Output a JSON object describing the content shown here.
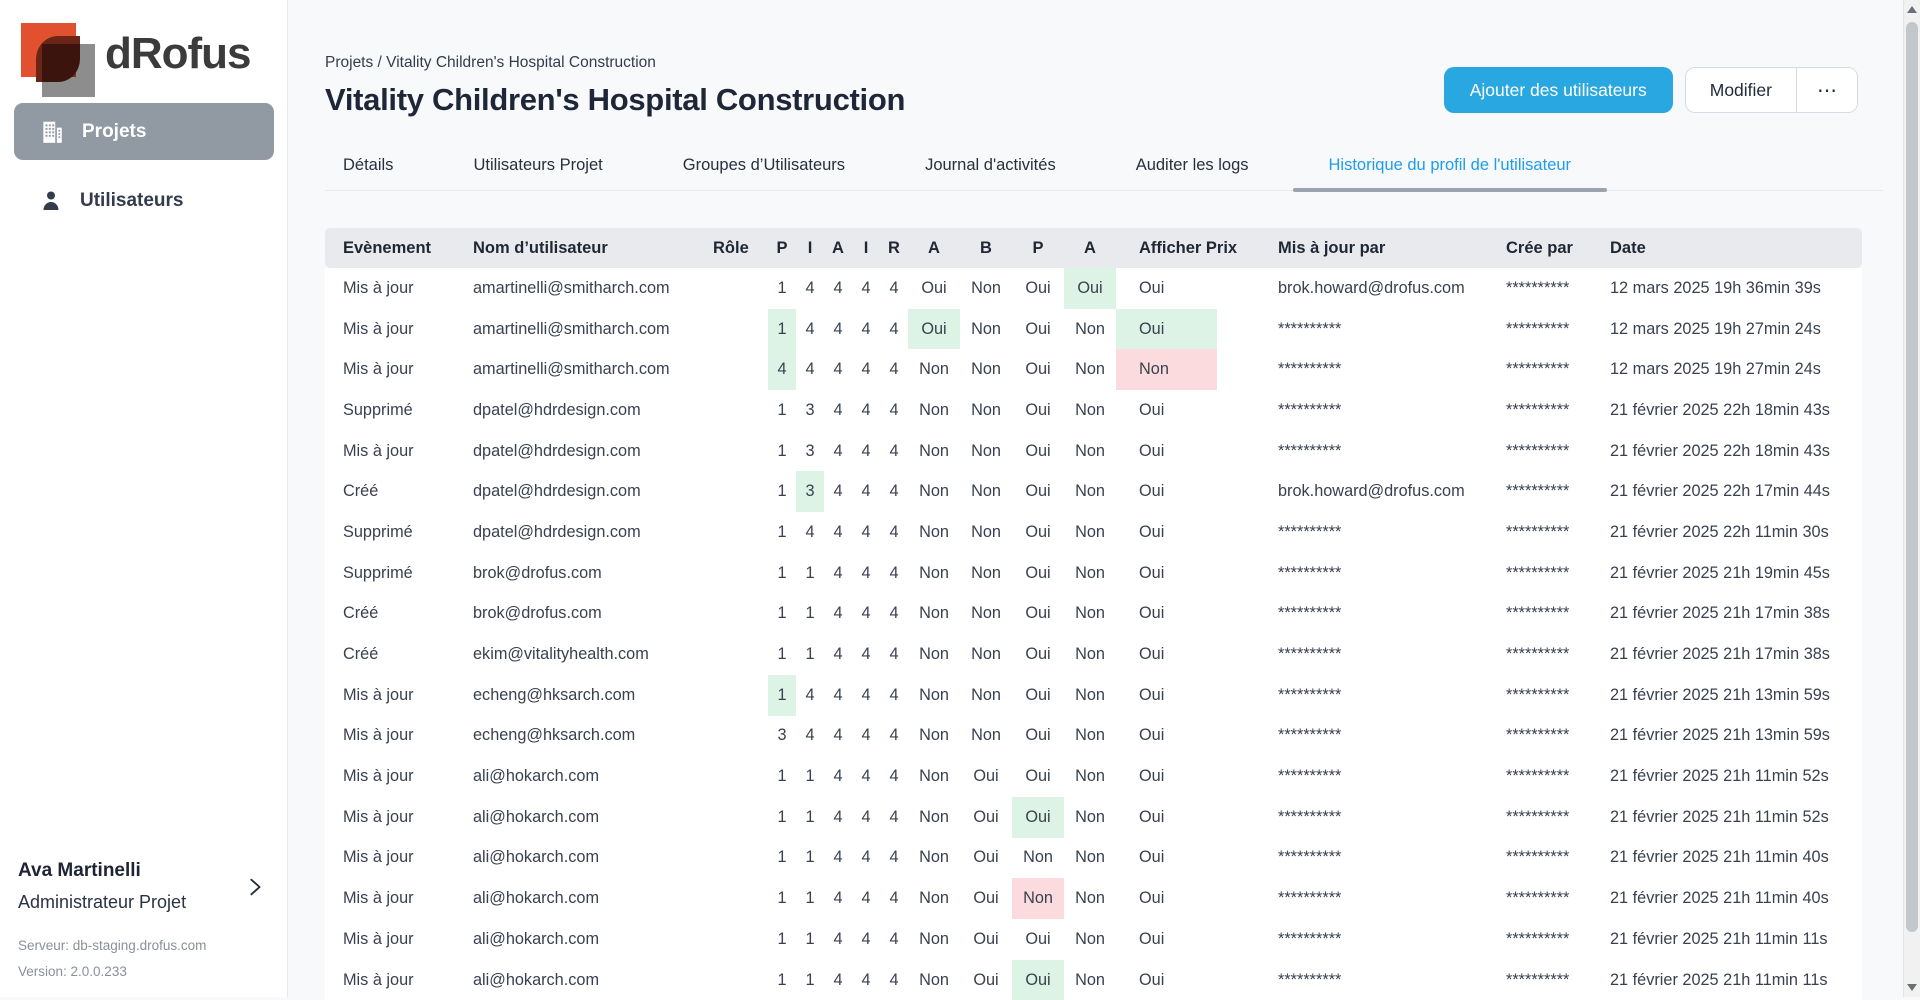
{
  "brand": "dRofus",
  "sidebar": {
    "items": [
      {
        "name": "sidebar-item-projets",
        "icon": "building-icon",
        "label": "Projets",
        "active": true
      },
      {
        "name": "sidebar-item-utilisateurs",
        "icon": "user-icon",
        "label": "Utilisateurs",
        "active": false
      }
    ],
    "user": {
      "name": "Ava Martinelli",
      "role": "Administrateur Projet"
    },
    "server": "Serveur: db-staging.drofus.com",
    "version": "Version: 2.0.0.233"
  },
  "header": {
    "breadcrumb": "Projets / Vitality Children's Hospital Construction",
    "title": "Vitality Children's Hospital Construction",
    "add_users_label": "Ajouter des utilisateurs",
    "modify_label": "Modifier",
    "more_label": "⋯"
  },
  "tabs": [
    {
      "name": "tab-details",
      "label": "Détails",
      "active": false
    },
    {
      "name": "tab-utilisateurs-projet",
      "label": "Utilisateurs Projet",
      "active": false
    },
    {
      "name": "tab-groupes-utilisateurs",
      "label": "Groupes d’Utilisateurs",
      "active": false
    },
    {
      "name": "tab-journal-activites",
      "label": "Journal d'activités",
      "active": false
    },
    {
      "name": "tab-auditer-les-logs",
      "label": "Auditer les logs",
      "active": false
    },
    {
      "name": "tab-historique-profil-utilisateur",
      "label": "Historique du profil de l'utilisateur",
      "active": true
    }
  ],
  "table": {
    "columns": [
      "Evènement",
      "Nom d’utilisateur",
      "Rôle",
      "P",
      "I",
      "A",
      "I",
      "R",
      "A",
      "B",
      "P",
      "A",
      "Afficher Prix",
      "Mis à jour par",
      "Crée par",
      "Date"
    ],
    "rows": [
      {
        "cells": [
          "Mis à jour",
          "amartinelli@smitharch.com",
          "",
          "1",
          "4",
          "4",
          "4",
          "4",
          "Oui",
          "Non",
          "Oui",
          "Oui",
          "Oui",
          "brok.howard@drofus.com",
          "**********",
          "12 mars 2025 19h 36min 39s"
        ],
        "hl": {
          "11": "green"
        }
      },
      {
        "cells": [
          "Mis à jour",
          "amartinelli@smitharch.com",
          "",
          "1",
          "4",
          "4",
          "4",
          "4",
          "Oui",
          "Non",
          "Oui",
          "Non",
          "Oui",
          "**********",
          "**********",
          "12 mars 2025 19h 27min 24s"
        ],
        "hl": {
          "3": "green",
          "8": "green",
          "12": "green"
        }
      },
      {
        "cells": [
          "Mis à jour",
          "amartinelli@smitharch.com",
          "",
          "4",
          "4",
          "4",
          "4",
          "4",
          "Non",
          "Non",
          "Oui",
          "Non",
          "Non",
          "**********",
          "**********",
          "12 mars 2025 19h 27min 24s"
        ],
        "hl": {
          "3": "green",
          "12": "red"
        }
      },
      {
        "cells": [
          "Supprimé",
          "dpatel@hdrdesign.com",
          "",
          "1",
          "3",
          "4",
          "4",
          "4",
          "Non",
          "Non",
          "Oui",
          "Non",
          "Oui",
          "**********",
          "**********",
          "21 février 2025 22h 18min 43s"
        ],
        "hl": {}
      },
      {
        "cells": [
          "Mis à jour",
          "dpatel@hdrdesign.com",
          "",
          "1",
          "3",
          "4",
          "4",
          "4",
          "Non",
          "Non",
          "Oui",
          "Non",
          "Oui",
          "**********",
          "**********",
          "21 février 2025 22h 18min 43s"
        ],
        "hl": {}
      },
      {
        "cells": [
          "Créé",
          "dpatel@hdrdesign.com",
          "",
          "1",
          "3",
          "4",
          "4",
          "4",
          "Non",
          "Non",
          "Oui",
          "Non",
          "Oui",
          "brok.howard@drofus.com",
          "**********",
          "21 février 2025 22h 17min 44s"
        ],
        "hl": {
          "4": "green"
        }
      },
      {
        "cells": [
          "Supprimé",
          "dpatel@hdrdesign.com",
          "",
          "1",
          "4",
          "4",
          "4",
          "4",
          "Non",
          "Non",
          "Oui",
          "Non",
          "Oui",
          "**********",
          "**********",
          "21 février 2025 22h 11min 30s"
        ],
        "hl": {}
      },
      {
        "cells": [
          "Supprimé",
          "brok@drofus.com",
          "",
          "1",
          "1",
          "4",
          "4",
          "4",
          "Non",
          "Non",
          "Oui",
          "Non",
          "Oui",
          "**********",
          "**********",
          "21 février 2025 21h 19min 45s"
        ],
        "hl": {}
      },
      {
        "cells": [
          "Créé",
          "brok@drofus.com",
          "",
          "1",
          "1",
          "4",
          "4",
          "4",
          "Non",
          "Non",
          "Oui",
          "Non",
          "Oui",
          "**********",
          "**********",
          "21 février 2025 21h 17min 38s"
        ],
        "hl": {}
      },
      {
        "cells": [
          "Créé",
          "ekim@vitalityhealth.com",
          "",
          "1",
          "1",
          "4",
          "4",
          "4",
          "Non",
          "Non",
          "Oui",
          "Non",
          "Oui",
          "**********",
          "**********",
          "21 février 2025 21h 17min 38s"
        ],
        "hl": {}
      },
      {
        "cells": [
          "Mis à jour",
          "echeng@hksarch.com",
          "",
          "1",
          "4",
          "4",
          "4",
          "4",
          "Non",
          "Non",
          "Oui",
          "Non",
          "Oui",
          "**********",
          "**********",
          "21 février 2025 21h 13min 59s"
        ],
        "hl": {
          "3": "green"
        }
      },
      {
        "cells": [
          "Mis à jour",
          "echeng@hksarch.com",
          "",
          "3",
          "4",
          "4",
          "4",
          "4",
          "Non",
          "Non",
          "Oui",
          "Non",
          "Oui",
          "**********",
          "**********",
          "21 février 2025 21h 13min 59s"
        ],
        "hl": {}
      },
      {
        "cells": [
          "Mis à jour",
          "ali@hokarch.com",
          "",
          "1",
          "1",
          "4",
          "4",
          "4",
          "Non",
          "Oui",
          "Oui",
          "Non",
          "Oui",
          "**********",
          "**********",
          "21 février 2025 21h 11min 52s"
        ],
        "hl": {}
      },
      {
        "cells": [
          "Mis à jour",
          "ali@hokarch.com",
          "",
          "1",
          "1",
          "4",
          "4",
          "4",
          "Non",
          "Oui",
          "Oui",
          "Non",
          "Oui",
          "**********",
          "**********",
          "21 février 2025 21h 11min 52s"
        ],
        "hl": {
          "10": "green"
        }
      },
      {
        "cells": [
          "Mis à jour",
          "ali@hokarch.com",
          "",
          "1",
          "1",
          "4",
          "4",
          "4",
          "Non",
          "Oui",
          "Non",
          "Non",
          "Oui",
          "**********",
          "**********",
          "21 février 2025 21h 11min 40s"
        ],
        "hl": {}
      },
      {
        "cells": [
          "Mis à jour",
          "ali@hokarch.com",
          "",
          "1",
          "1",
          "4",
          "4",
          "4",
          "Non",
          "Oui",
          "Non",
          "Non",
          "Oui",
          "**********",
          "**********",
          "21 février 2025 21h 11min 40s"
        ],
        "hl": {
          "10": "red"
        }
      },
      {
        "cells": [
          "Mis à jour",
          "ali@hokarch.com",
          "",
          "1",
          "1",
          "4",
          "4",
          "4",
          "Non",
          "Oui",
          "Oui",
          "Non",
          "Oui",
          "**********",
          "**********",
          "21 février 2025 21h 11min 11s"
        ],
        "hl": {}
      },
      {
        "cells": [
          "Mis à jour",
          "ali@hokarch.com",
          "",
          "1",
          "1",
          "4",
          "4",
          "4",
          "Non",
          "Oui",
          "Oui",
          "Non",
          "Oui",
          "**********",
          "**********",
          "21 février 2025 21h 11min 11s"
        ],
        "hl": {
          "10": "green"
        }
      }
    ]
  },
  "colors": {
    "accent_blue": "#28A7E1",
    "tab_active_blue": "#1E9CEF",
    "highlight_green": "#DCF3E5",
    "highlight_red": "#FBDBDE",
    "logo_orange": "#E2512F",
    "sidebar_active_gray": "#9199A3"
  }
}
